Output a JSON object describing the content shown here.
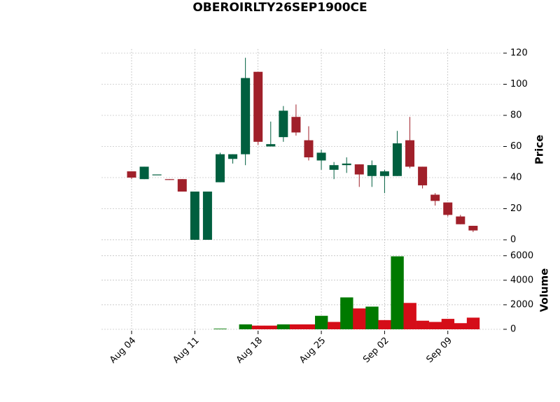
{
  "chart_data": {
    "type": "candlestick",
    "title": "OBEROIRLTY26SEP1900CE",
    "ylabel": "Price",
    "volume_label": "Volume",
    "categories": [
      "Aug 04",
      null,
      null,
      null,
      null,
      "Aug 11",
      null,
      null,
      null,
      null,
      "Aug 18",
      null,
      null,
      null,
      null,
      "Aug 25",
      null,
      null,
      null,
      null,
      "Sep 02",
      null,
      null,
      null,
      null,
      "Sep 09",
      null,
      null
    ],
    "open": [
      44,
      39,
      42,
      39,
      39,
      0,
      0,
      37,
      52,
      55,
      108,
      60,
      66,
      79,
      64,
      51,
      45,
      48,
      48.5,
      41,
      41,
      41,
      64,
      47,
      29,
      24,
      15,
      9
    ],
    "high": [
      44,
      47,
      42,
      39,
      39,
      31,
      31,
      56,
      55,
      117,
      108,
      76,
      86,
      87,
      73,
      58,
      50,
      53,
      48.5,
      51,
      45,
      70,
      79,
      47,
      30,
      24,
      16,
      9
    ],
    "low": [
      39,
      39,
      42,
      38.5,
      31,
      0,
      0,
      37,
      49,
      48,
      61,
      60,
      63,
      67,
      51,
      45,
      39,
      43,
      34,
      34,
      30,
      41,
      46,
      33,
      22,
      15,
      10,
      5
    ],
    "close": [
      40,
      47,
      42,
      38.5,
      31,
      31,
      31,
      55,
      55,
      104,
      63,
      61.5,
      83,
      69,
      53,
      56,
      48,
      49,
      42,
      48,
      44,
      62,
      47,
      35,
      25,
      16,
      10,
      6
    ],
    "volume": [
      0,
      0,
      0,
      0,
      0,
      0,
      0,
      50,
      0,
      400,
      300,
      300,
      400,
      400,
      400,
      1100,
      600,
      2600,
      1700,
      1850,
      750,
      5950,
      2150,
      700,
      600,
      850,
      500,
      950
    ],
    "volume_colors": [
      "#007a00",
      "#007a00",
      "#d50d18",
      "#d50d18",
      "#d50d18",
      "#007a00",
      "#007a00",
      "#007a00",
      "#007a00",
      "#007a00",
      "#d50d18",
      "#d50d18",
      "#007a00",
      "#d50d18",
      "#d50d18",
      "#007a00",
      "#d50d18",
      "#007a00",
      "#d50d18",
      "#007a00",
      "#d50d18",
      "#007a00",
      "#d50d18",
      "#d50d18",
      "#d50d18",
      "#d50d18",
      "#d50d18",
      "#d50d18"
    ],
    "up_color": "#005f3f",
    "down_color": "#a0202a",
    "ylim": [
      -5.4,
      122.7
    ],
    "yticks": [
      0,
      20,
      40,
      60,
      80,
      100,
      120
    ],
    "volume_ylim": [
      0,
      6500
    ],
    "volume_yticks": [
      0,
      2000,
      4000,
      6000
    ],
    "grid": true
  }
}
